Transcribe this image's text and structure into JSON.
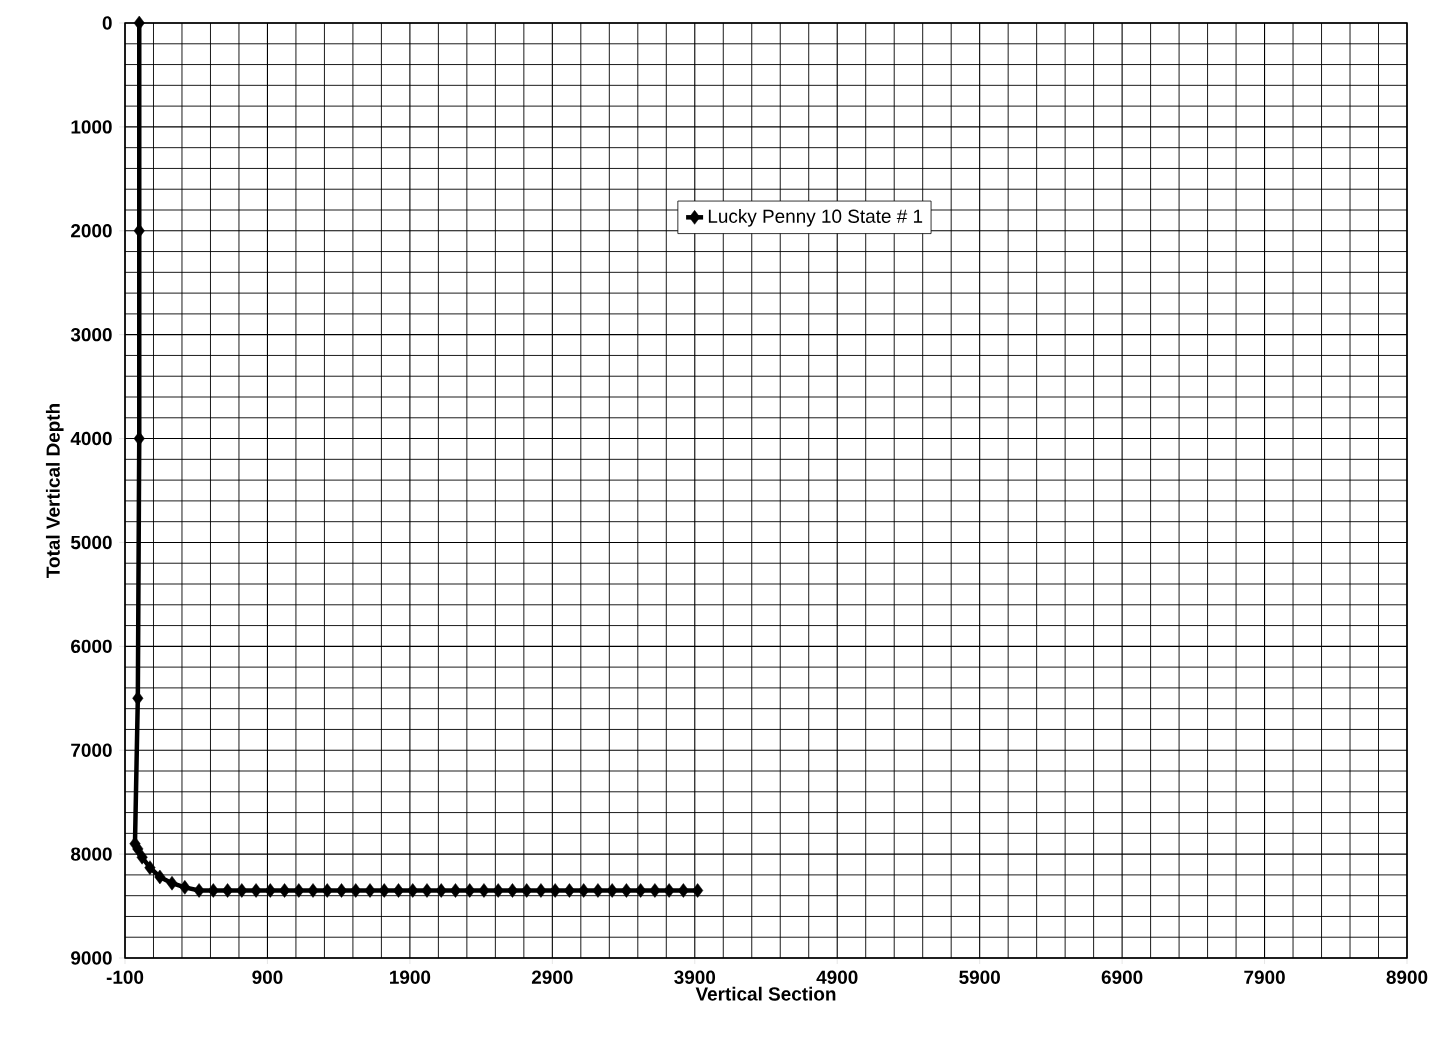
{
  "chart_data": {
    "type": "line",
    "xlabel": "Vertical Section",
    "ylabel": "Total Vertical Depth",
    "xlim": [
      -100,
      8900
    ],
    "xticks": [
      -100,
      900,
      1900,
      2900,
      3900,
      4900,
      5900,
      6900,
      7900,
      8900
    ],
    "ylim": [
      9000,
      0
    ],
    "yticks": [
      0,
      1000,
      2000,
      3000,
      4000,
      5000,
      6000,
      7000,
      8000,
      9000
    ],
    "grid": true,
    "legend": "top",
    "marker": "diamond",
    "line_style": "solid",
    "series": [
      {
        "name": "Lucky Penny 10 State # 1",
        "color": "#000000",
        "x": [
          0,
          0,
          0,
          -10,
          -30,
          -10,
          20,
          75,
          145,
          230,
          320,
          420,
          520,
          620,
          720,
          820,
          920,
          1020,
          1120,
          1220,
          1320,
          1420,
          1520,
          1620,
          1720,
          1820,
          1920,
          2020,
          2120,
          2220,
          2320,
          2420,
          2520,
          2620,
          2720,
          2820,
          2920,
          3020,
          3120,
          3220,
          3320,
          3420,
          3520,
          3620,
          3720,
          3820,
          3920
        ],
        "values": [
          0,
          2000,
          4000,
          6500,
          7900,
          7950,
          8030,
          8130,
          8220,
          8280,
          8320,
          8350,
          8350,
          8350,
          8350,
          8350,
          8350,
          8350,
          8350,
          8350,
          8350,
          8350,
          8350,
          8350,
          8350,
          8350,
          8350,
          8350,
          8350,
          8350,
          8350,
          8350,
          8350,
          8350,
          8350,
          8350,
          8350,
          8350,
          8350,
          8350,
          8350,
          8350,
          8350,
          8350,
          8350,
          8350,
          8350
        ]
      }
    ]
  }
}
